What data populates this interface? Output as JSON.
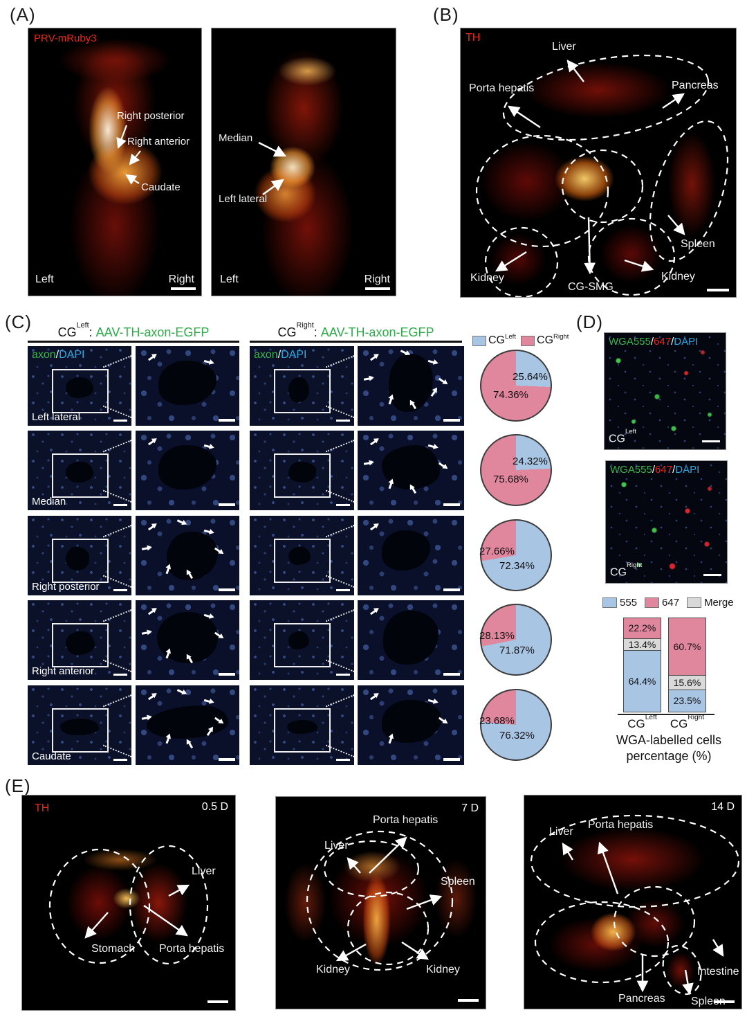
{
  "panels": {
    "A": {
      "tag": "(A)",
      "img1": {
        "marker": "PRV-mRuby3",
        "labels": [
          "Right posterior",
          "Right anterior",
          "Caudate"
        ],
        "corner_left": "Left",
        "corner_right": "Right"
      },
      "img2": {
        "labels": [
          "Median",
          "Left lateral"
        ],
        "corner_left": "Left",
        "corner_right": "Right"
      }
    },
    "B": {
      "tag": "(B)",
      "marker": "TH",
      "labels": [
        "Liver",
        "Porta hepatis",
        "Pancreas",
        "Spleen",
        "Kidney",
        "CG-SMG",
        "Kidney"
      ]
    },
    "C": {
      "tag": "(C)",
      "headers": [
        {
          "base": "CG",
          "sup": "Left",
          "sep": ":",
          "virus": "AAV-TH-axon-EGFP"
        },
        {
          "base": "CG",
          "sup": "Right",
          "sep": ":",
          "virus": "AAV-TH-axon-EGFP"
        }
      ],
      "overlay": {
        "axon": "axon",
        "slash": "/",
        "dapi": "DAPI"
      },
      "rows": [
        {
          "label": "Left lateral"
        },
        {
          "label": "Median"
        },
        {
          "label": "Right posterior"
        },
        {
          "label": "Right anterior"
        },
        {
          "label": "Caudate"
        }
      ],
      "legend": [
        {
          "base": "CG",
          "sup": "Left"
        },
        {
          "base": "CG",
          "sup": "Right"
        }
      ]
    },
    "D": {
      "tag": "(D)",
      "overlay": {
        "wga": "WGA555",
        "slash1": "/",
        "red": "647",
        "slash2": "/",
        "dapi": "DAPI"
      },
      "images": [
        {
          "corner_base": "CG",
          "corner_sup": "Left"
        },
        {
          "corner_base": "CG",
          "corner_sup": "Right"
        }
      ],
      "legend": [
        {
          "label": "555"
        },
        {
          "label": "647"
        },
        {
          "label": "Merge"
        }
      ],
      "categories": [
        {
          "base": "CG",
          "sup": "Left"
        },
        {
          "base": "CG",
          "sup": "Right"
        }
      ],
      "title_line1": "WGA-labelled cells",
      "title_line2": "percentage (%)"
    },
    "E": {
      "tag": "(E)",
      "images": [
        {
          "marker": "TH",
          "time": "0.5 D",
          "labels": [
            "Liver",
            "Stomach",
            "Porta hepatis"
          ]
        },
        {
          "time": "7 D",
          "labels": [
            "Porta hepatis",
            "Liver",
            "Spleen",
            "Kidney",
            "Kidney"
          ]
        },
        {
          "time": "14 D",
          "labels": [
            "Liver",
            "Porta hepatis",
            "Intestine",
            "Pancreas",
            "Spleen"
          ]
        }
      ]
    }
  },
  "chart_data": [
    {
      "type": "pie",
      "title": "Left lateral",
      "legend_position": "top",
      "slices": [
        {
          "name": "CG-Left",
          "value": 25.64,
          "display": "25.64%",
          "color": "#a9c5e4"
        },
        {
          "name": "CG-Right",
          "value": 74.36,
          "display": "74.36%",
          "color": "#e0879e"
        }
      ]
    },
    {
      "type": "pie",
      "title": "Median",
      "slices": [
        {
          "name": "CG-Left",
          "value": 24.32,
          "display": "24.32%",
          "color": "#a9c5e4"
        },
        {
          "name": "CG-Right",
          "value": 75.68,
          "display": "75.68%",
          "color": "#e0879e"
        }
      ]
    },
    {
      "type": "pie",
      "title": "Right posterior",
      "slices": [
        {
          "name": "CG-Left",
          "value": 72.34,
          "display": "72.34%",
          "color": "#a9c5e4"
        },
        {
          "name": "CG-Right",
          "value": 27.66,
          "display": "27.66%",
          "color": "#e0879e"
        }
      ]
    },
    {
      "type": "pie",
      "title": "Right anterior",
      "slices": [
        {
          "name": "CG-Left",
          "value": 71.87,
          "display": "71.87%",
          "color": "#a9c5e4"
        },
        {
          "name": "CG-Right",
          "value": 28.13,
          "display": "28.13%",
          "color": "#e0879e"
        }
      ]
    },
    {
      "type": "pie",
      "title": "Caudate",
      "slices": [
        {
          "name": "CG-Left",
          "value": 76.32,
          "display": "76.32%",
          "color": "#a9c5e4"
        },
        {
          "name": "CG-Right",
          "value": 23.68,
          "display": "23.68%",
          "color": "#e0879e"
        }
      ]
    },
    {
      "type": "bar",
      "stacked": true,
      "categories": [
        "CG-Left",
        "CG-Right"
      ],
      "series": [
        {
          "name": "555",
          "color": "#a9c5e4",
          "values": [
            64.4,
            23.5
          ]
        },
        {
          "name": "Merge",
          "color": "#d9d9d9",
          "values": [
            13.4,
            15.6
          ]
        },
        {
          "name": "647",
          "color": "#e0879e",
          "values": [
            22.2,
            60.7
          ]
        }
      ],
      "title": "WGA-labelled cells percentage (%)",
      "ylabel": "percentage (%)",
      "ylim": [
        0,
        100
      ],
      "legend_position": "top"
    }
  ]
}
